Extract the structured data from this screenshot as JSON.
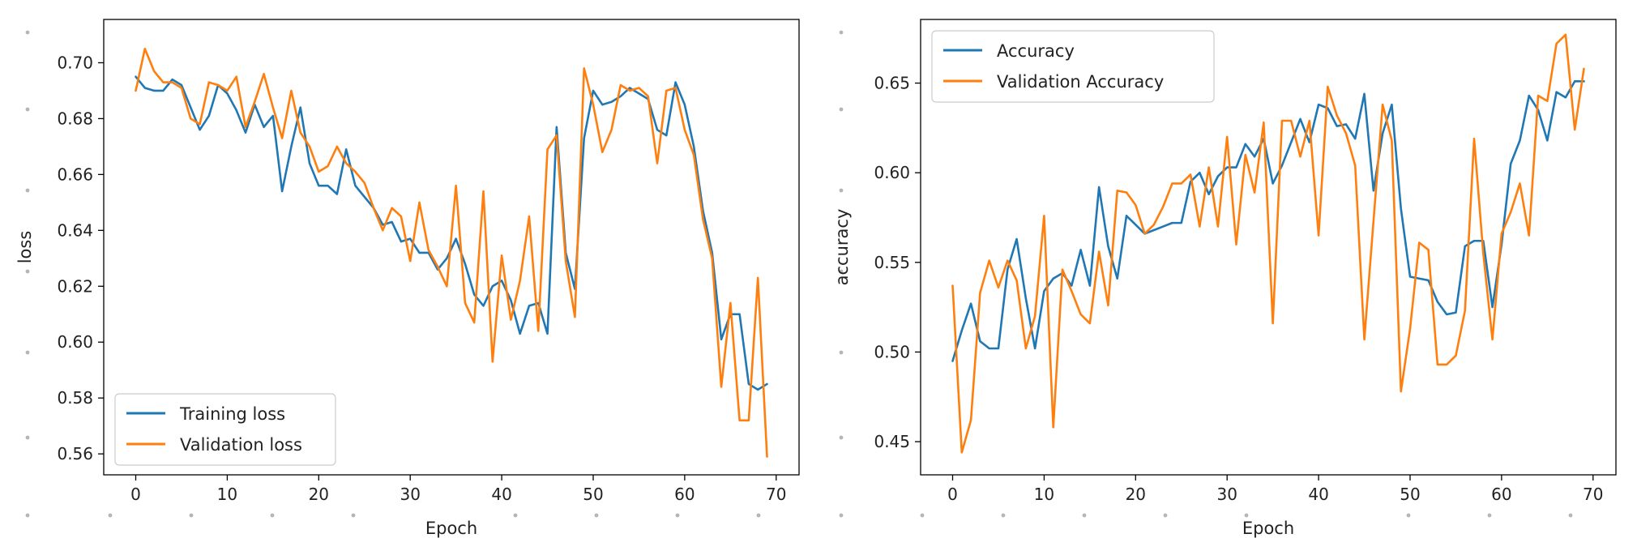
{
  "colors": {
    "training": "#1f77b4",
    "validation": "#ff7f0e"
  },
  "chart_data": [
    {
      "type": "line",
      "title": "",
      "xlabel": "Epoch",
      "ylabel": "loss",
      "xlim": [
        -3.5,
        72.5
      ],
      "ylim": [
        0.5525,
        0.7155
      ],
      "xticks": [
        0,
        10,
        20,
        30,
        40,
        50,
        60,
        70
      ],
      "xtick_labels": [
        "0",
        "10",
        "20",
        "30",
        "40",
        "50",
        "60",
        "70"
      ],
      "yticks": [
        0.56,
        0.58,
        0.6,
        0.62,
        0.64,
        0.66,
        0.68,
        0.7
      ],
      "ytick_labels": [
        "0.56",
        "0.58",
        "0.60",
        "0.62",
        "0.64",
        "0.66",
        "0.68",
        "0.70"
      ],
      "legend_position": "lower-left",
      "series": [
        {
          "name": "Training loss",
          "color_key": "training",
          "values": [
            0.695,
            0.691,
            0.69,
            0.69,
            0.694,
            0.692,
            0.684,
            0.676,
            0.681,
            0.692,
            0.689,
            0.683,
            0.675,
            0.685,
            0.677,
            0.681,
            0.654,
            0.67,
            0.684,
            0.664,
            0.656,
            0.656,
            0.653,
            0.669,
            0.656,
            0.652,
            0.648,
            0.642,
            0.643,
            0.636,
            0.637,
            0.632,
            0.632,
            0.626,
            0.63,
            0.637,
            0.628,
            0.617,
            0.613,
            0.62,
            0.622,
            0.615,
            0.603,
            0.613,
            0.614,
            0.603,
            0.677,
            0.632,
            0.619,
            0.673,
            0.69,
            0.685,
            0.686,
            0.688,
            0.691,
            0.689,
            0.687,
            0.676,
            0.674,
            0.693,
            0.685,
            0.67,
            0.647,
            0.632,
            0.601,
            0.61,
            0.61,
            0.585,
            0.583,
            0.585
          ]
        },
        {
          "name": "Validation loss",
          "color_key": "validation",
          "values": [
            0.69,
            0.705,
            0.697,
            0.693,
            0.693,
            0.691,
            0.68,
            0.678,
            0.693,
            0.692,
            0.69,
            0.695,
            0.677,
            0.686,
            0.696,
            0.684,
            0.673,
            0.69,
            0.675,
            0.67,
            0.661,
            0.663,
            0.67,
            0.664,
            0.661,
            0.657,
            0.648,
            0.64,
            0.648,
            0.645,
            0.629,
            0.65,
            0.633,
            0.627,
            0.62,
            0.656,
            0.614,
            0.607,
            0.654,
            0.593,
            0.631,
            0.608,
            0.622,
            0.645,
            0.604,
            0.669,
            0.674,
            0.629,
            0.609,
            0.698,
            0.685,
            0.668,
            0.676,
            0.692,
            0.69,
            0.691,
            0.688,
            0.664,
            0.69,
            0.691,
            0.676,
            0.667,
            0.644,
            0.63,
            0.584,
            0.614,
            0.572,
            0.572,
            0.623,
            0.559
          ]
        }
      ]
    },
    {
      "type": "line",
      "title": "",
      "xlabel": "Epoch",
      "ylabel": "accuracy",
      "xlim": [
        -3.5,
        72.5
      ],
      "ylim": [
        0.4315,
        0.6855
      ],
      "xticks": [
        0,
        10,
        20,
        30,
        40,
        50,
        60,
        70
      ],
      "xtick_labels": [
        "0",
        "10",
        "20",
        "30",
        "40",
        "50",
        "60",
        "70"
      ],
      "yticks": [
        0.45,
        0.5,
        0.55,
        0.6,
        0.65
      ],
      "ytick_labels": [
        "0.45",
        "0.50",
        "0.55",
        "0.60",
        "0.65"
      ],
      "legend_position": "upper-left",
      "series": [
        {
          "name": "Accuracy",
          "color_key": "training",
          "values": [
            0.495,
            0.512,
            0.527,
            0.506,
            0.502,
            0.502,
            0.546,
            0.563,
            0.53,
            0.502,
            0.534,
            0.541,
            0.544,
            0.537,
            0.557,
            0.537,
            0.592,
            0.559,
            0.541,
            0.576,
            0.571,
            0.566,
            0.568,
            0.57,
            0.572,
            0.572,
            0.595,
            0.6,
            0.588,
            0.598,
            0.603,
            0.603,
            0.616,
            0.609,
            0.619,
            0.594,
            0.604,
            0.617,
            0.63,
            0.617,
            0.638,
            0.636,
            0.626,
            0.627,
            0.619,
            0.644,
            0.59,
            0.622,
            0.638,
            0.58,
            0.542,
            0.541,
            0.54,
            0.528,
            0.521,
            0.522,
            0.559,
            0.562,
            0.562,
            0.525,
            0.56,
            0.605,
            0.618,
            0.643,
            0.635,
            0.618,
            0.645,
            0.642,
            0.651,
            0.651
          ]
        },
        {
          "name": "Validation Accuracy",
          "color_key": "validation",
          "values": [
            0.537,
            0.444,
            0.462,
            0.533,
            0.551,
            0.536,
            0.551,
            0.54,
            0.502,
            0.52,
            0.576,
            0.458,
            0.546,
            0.534,
            0.521,
            0.516,
            0.556,
            0.526,
            0.59,
            0.589,
            0.582,
            0.566,
            0.571,
            0.581,
            0.594,
            0.594,
            0.599,
            0.57,
            0.603,
            0.57,
            0.62,
            0.56,
            0.61,
            0.589,
            0.628,
            0.516,
            0.629,
            0.629,
            0.609,
            0.629,
            0.565,
            0.648,
            0.632,
            0.622,
            0.604,
            0.507,
            0.573,
            0.638,
            0.618,
            0.478,
            0.513,
            0.561,
            0.557,
            0.493,
            0.493,
            0.498,
            0.523,
            0.619,
            0.555,
            0.507,
            0.566,
            0.578,
            0.594,
            0.565,
            0.643,
            0.64,
            0.672,
            0.677,
            0.624,
            0.658
          ]
        }
      ]
    }
  ]
}
